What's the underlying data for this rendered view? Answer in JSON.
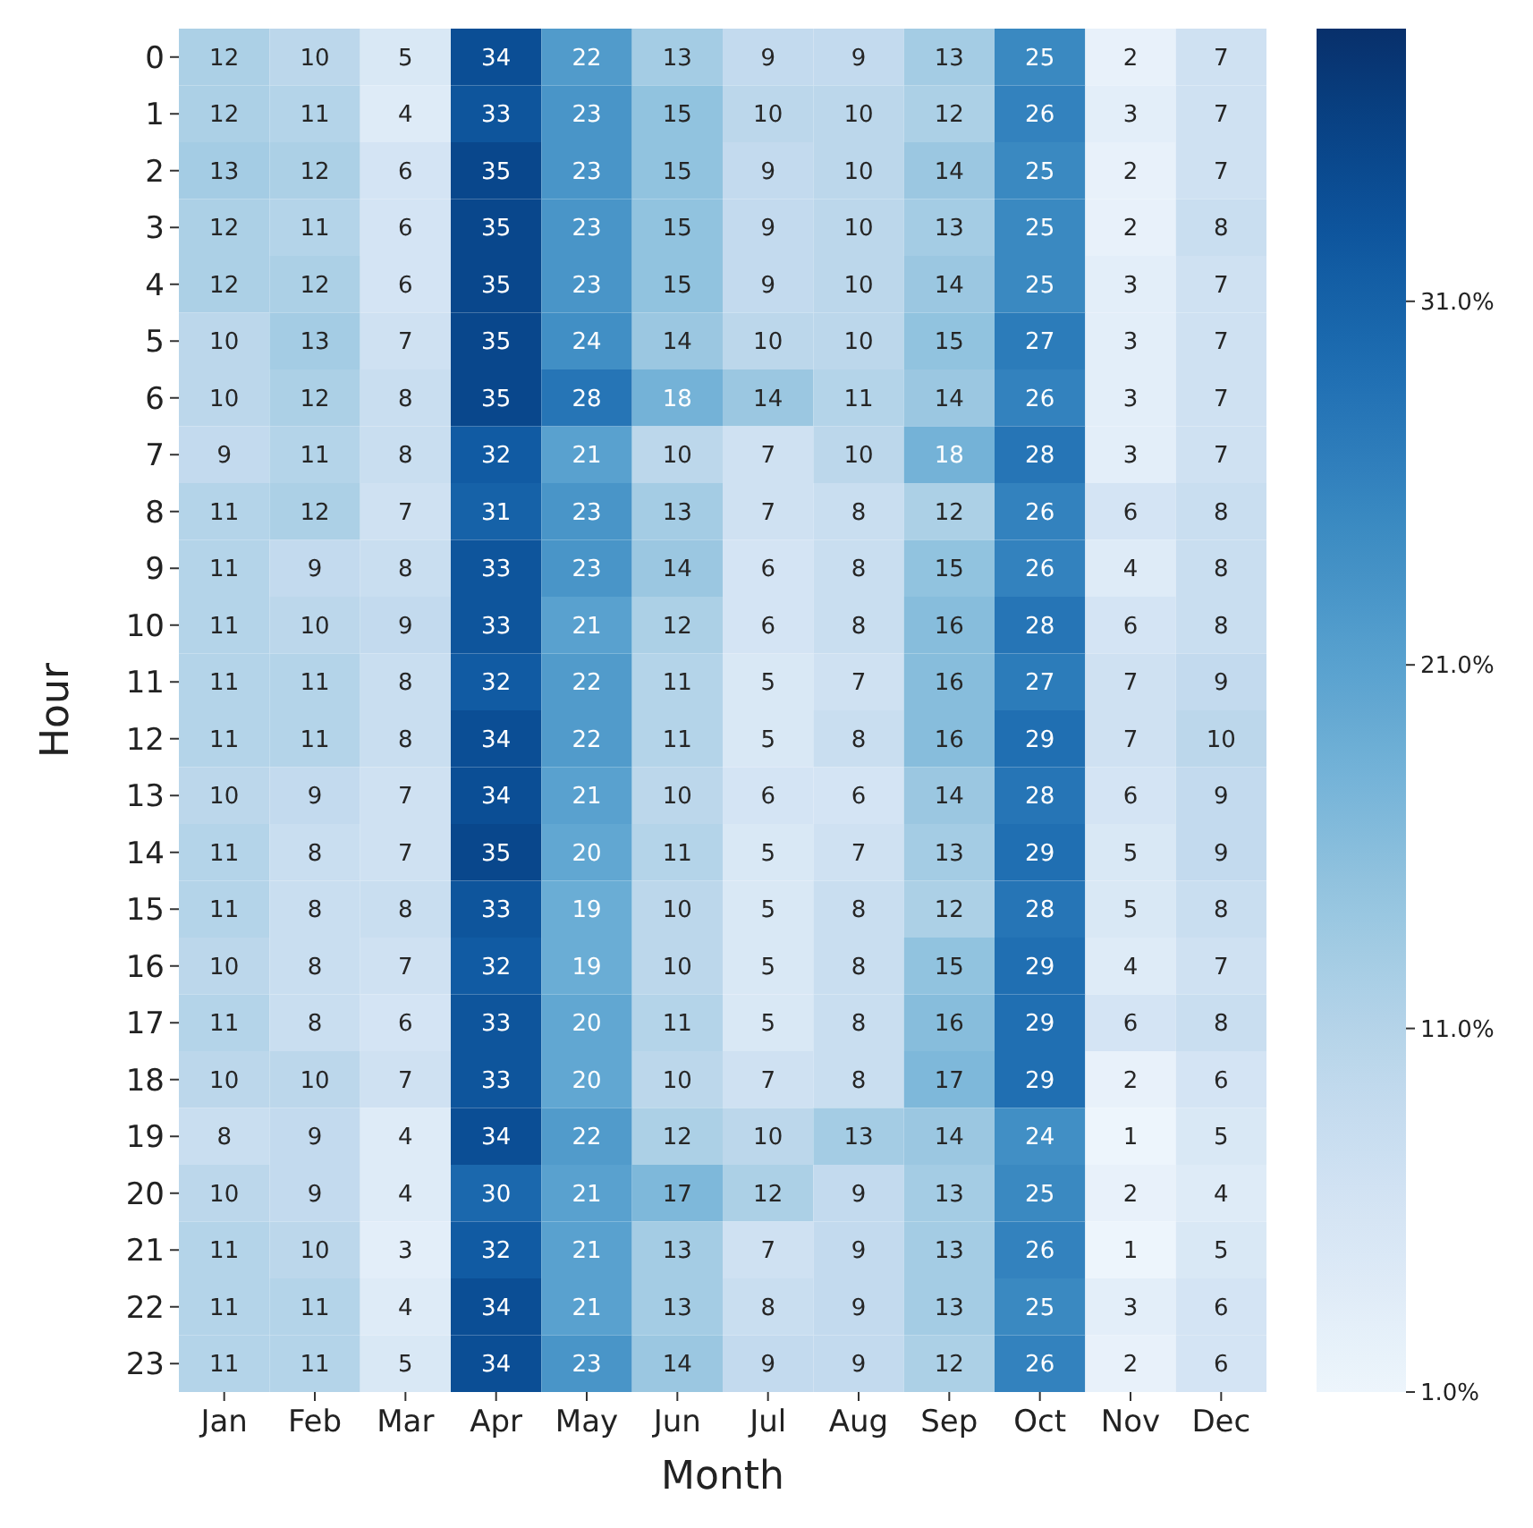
{
  "chart_data": {
    "type": "heatmap",
    "xlabel": "Month",
    "ylabel": "Hour",
    "categories": [
      "Jan",
      "Feb",
      "Mar",
      "Apr",
      "May",
      "Jun",
      "Jul",
      "Aug",
      "Sep",
      "Oct",
      "Nov",
      "Dec"
    ],
    "y_categories": [
      "0",
      "1",
      "2",
      "3",
      "4",
      "5",
      "6",
      "7",
      "8",
      "9",
      "10",
      "11",
      "12",
      "13",
      "14",
      "15",
      "16",
      "17",
      "18",
      "19",
      "20",
      "21",
      "22",
      "23"
    ],
    "cells": [
      [
        12,
        10,
        5,
        34,
        22,
        13,
        9,
        9,
        13,
        25,
        2,
        7
      ],
      [
        12,
        11,
        4,
        33,
        23,
        15,
        10,
        10,
        12,
        26,
        3,
        7
      ],
      [
        13,
        12,
        6,
        35,
        23,
        15,
        9,
        10,
        14,
        25,
        2,
        7
      ],
      [
        12,
        11,
        6,
        35,
        23,
        15,
        9,
        10,
        13,
        25,
        2,
        8
      ],
      [
        12,
        12,
        6,
        35,
        23,
        15,
        9,
        10,
        14,
        25,
        3,
        7
      ],
      [
        10,
        13,
        7,
        35,
        24,
        14,
        10,
        10,
        15,
        27,
        3,
        7
      ],
      [
        10,
        12,
        8,
        35,
        28,
        18,
        14,
        11,
        14,
        26,
        3,
        7
      ],
      [
        9,
        11,
        8,
        32,
        21,
        10,
        7,
        10,
        18,
        28,
        3,
        7
      ],
      [
        11,
        12,
        7,
        31,
        23,
        13,
        7,
        8,
        12,
        26,
        6,
        8
      ],
      [
        11,
        9,
        8,
        33,
        23,
        14,
        6,
        8,
        15,
        26,
        4,
        8
      ],
      [
        11,
        10,
        9,
        33,
        21,
        12,
        6,
        8,
        16,
        28,
        6,
        8
      ],
      [
        11,
        11,
        8,
        32,
        22,
        11,
        5,
        7,
        16,
        27,
        7,
        9
      ],
      [
        11,
        11,
        8,
        34,
        22,
        11,
        5,
        8,
        16,
        29,
        7,
        10
      ],
      [
        10,
        9,
        7,
        34,
        21,
        10,
        6,
        6,
        14,
        28,
        6,
        9
      ],
      [
        11,
        8,
        7,
        35,
        20,
        11,
        5,
        7,
        13,
        29,
        5,
        9
      ],
      [
        11,
        8,
        8,
        33,
        19,
        10,
        5,
        8,
        12,
        28,
        5,
        8
      ],
      [
        10,
        8,
        7,
        32,
        19,
        10,
        5,
        8,
        15,
        29,
        4,
        7
      ],
      [
        11,
        8,
        6,
        33,
        20,
        11,
        5,
        8,
        16,
        29,
        6,
        8
      ],
      [
        10,
        10,
        7,
        33,
        20,
        10,
        7,
        8,
        17,
        29,
        2,
        6
      ],
      [
        8,
        9,
        4,
        34,
        22,
        12,
        10,
        13,
        14,
        24,
        1,
        5
      ],
      [
        10,
        9,
        4,
        30,
        21,
        17,
        12,
        9,
        13,
        25,
        2,
        4
      ],
      [
        11,
        10,
        3,
        32,
        21,
        13,
        7,
        9,
        13,
        26,
        1,
        5
      ],
      [
        11,
        11,
        4,
        34,
        21,
        13,
        8,
        9,
        13,
        25,
        3,
        6
      ],
      [
        11,
        11,
        5,
        34,
        23,
        14,
        9,
        9,
        12,
        26,
        2,
        6
      ]
    ],
    "data_labels": true,
    "clim": [
      1,
      38.5
    ],
    "cticks": [
      {
        "value": 1,
        "label": "1.0%"
      },
      {
        "value": 11,
        "label": "11.0%"
      },
      {
        "value": 21,
        "label": "21.0%"
      },
      {
        "value": 31,
        "label": "31.0%"
      }
    ]
  }
}
